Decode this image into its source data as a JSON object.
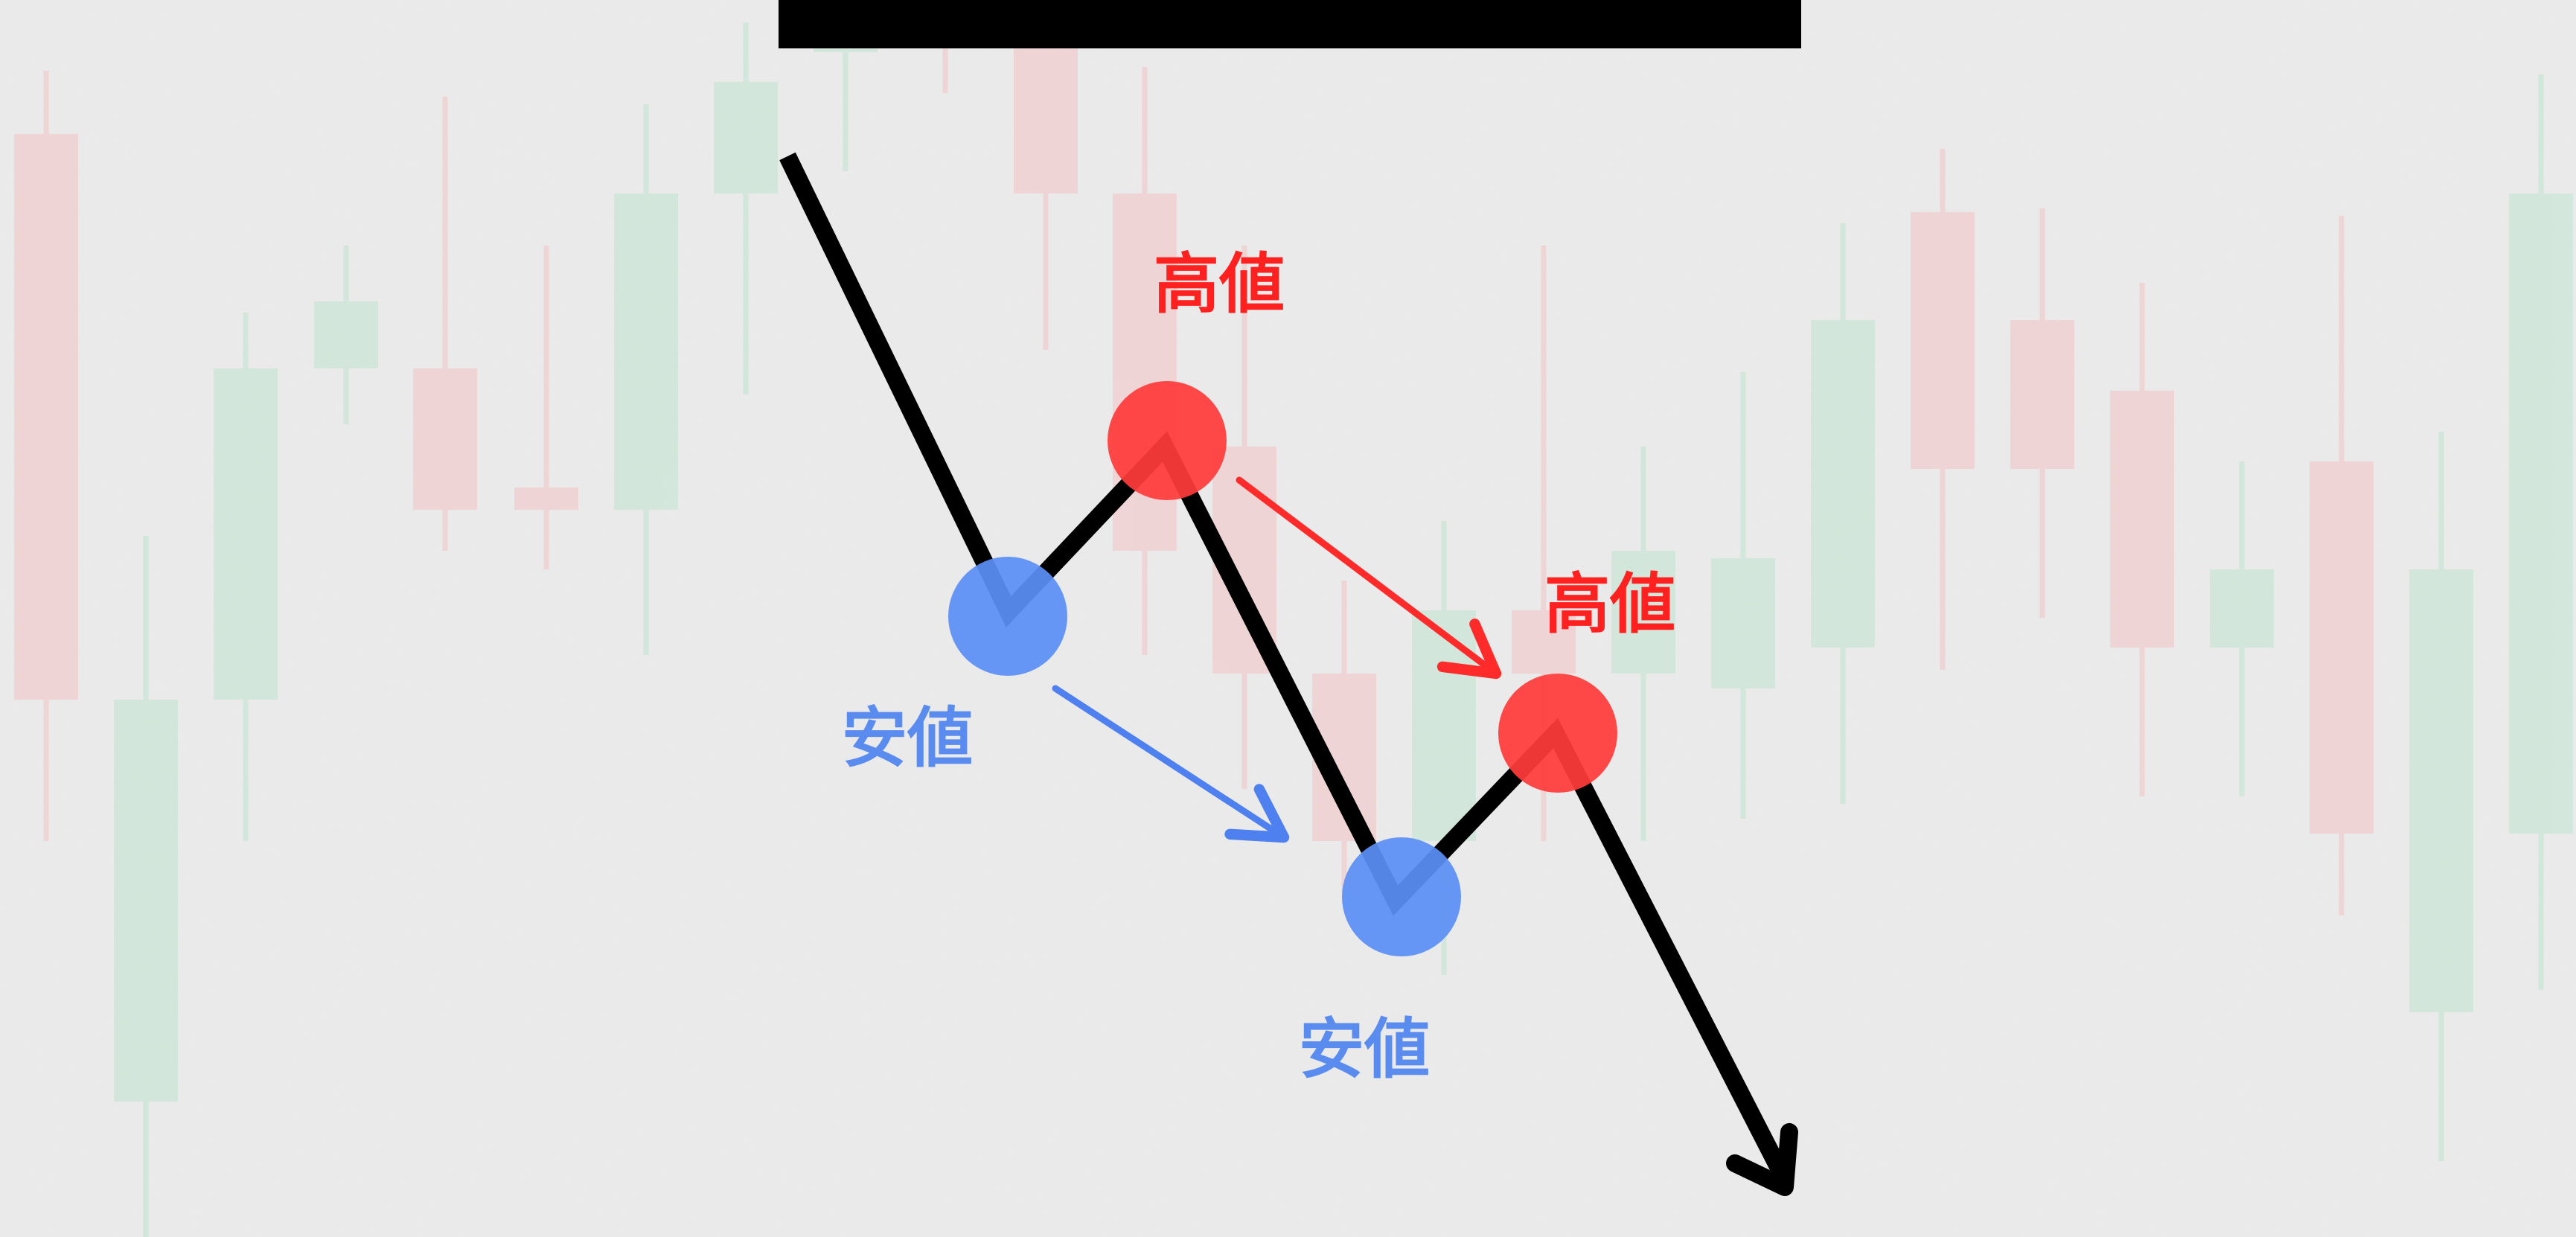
{
  "labels": {
    "high_1": "高値",
    "high_2": "高値",
    "low_1": "安値",
    "low_2": "安値"
  },
  "colors": {
    "background": "#ececec",
    "trend_line": "#000000",
    "high_marker": "#ff3b3b",
    "high_text": "#ff2020",
    "high_arrow": "#ff2a2a",
    "low_marker": "#5b8ff5",
    "low_text": "#5a8cf0",
    "low_arrow": "#4f80f0",
    "bg_candle_up": "#bfe3cf",
    "bg_candle_down": "#f3c3c3",
    "title_bar": "#000000"
  },
  "icons": {
    "trend_arrow": "arrow-down-right-icon",
    "high_marker": "red-circle-icon",
    "low_marker": "blue-circle-icon"
  }
}
